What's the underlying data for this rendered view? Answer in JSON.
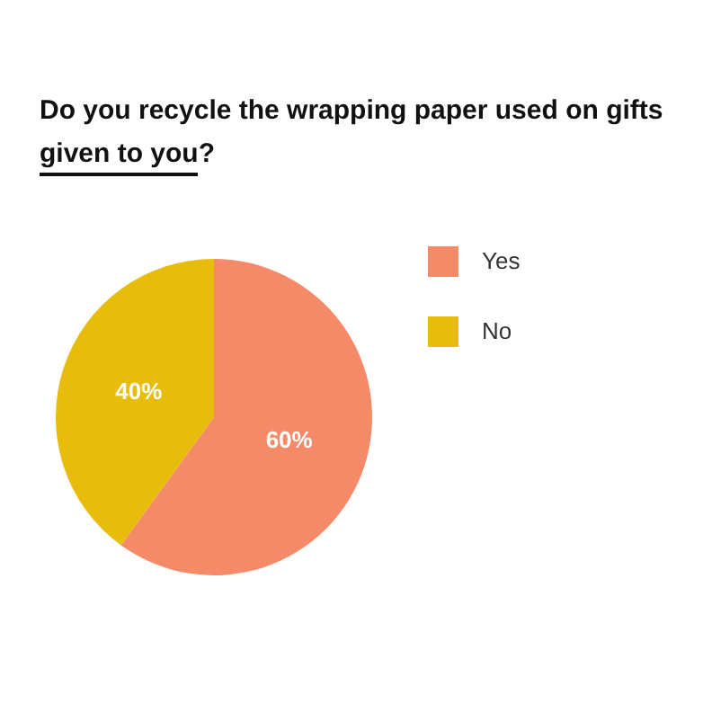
{
  "chart_data": {
    "type": "pie",
    "title": "Do you recycle the wrapping paper used on gifts given to you?",
    "categories": [
      "Yes",
      "No"
    ],
    "values": [
      60,
      40
    ],
    "colors": [
      "#f58a68",
      "#e8bc0b"
    ],
    "value_labels": [
      "60%",
      "40%"
    ],
    "legend": "top right"
  }
}
